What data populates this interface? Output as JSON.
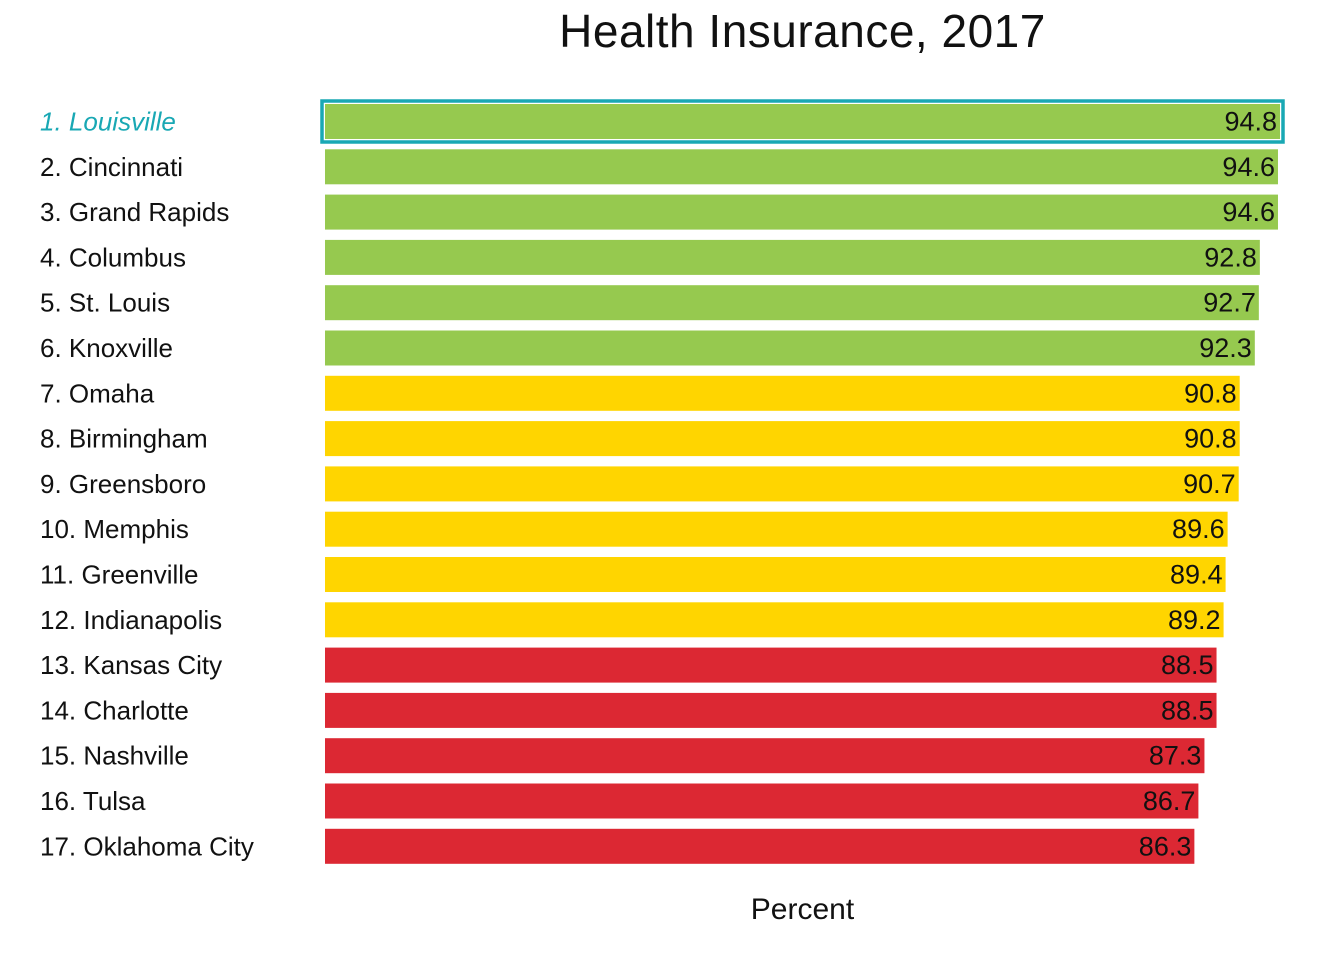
{
  "chart_data": {
    "type": "bar",
    "orientation": "horizontal",
    "title": "Health Insurance, 2017",
    "xlabel": "Percent",
    "ylabel": "",
    "xlim": [
      0,
      94.8
    ],
    "grid": false,
    "legend": "none",
    "highlight_index": 0,
    "highlight_color": "#19a8b4",
    "categories": [
      "1. Louisville",
      "2. Cincinnati",
      "3. Grand Rapids",
      "4. Columbus",
      "5. St. Louis",
      "6. Knoxville",
      "7. Omaha",
      "8. Birmingham",
      "9. Greensboro",
      "10. Memphis",
      "11. Greenville",
      "12. Indianapolis",
      "13. Kansas City",
      "14. Charlotte",
      "15. Nashville",
      "16. Tulsa",
      "17. Oklahoma City"
    ],
    "values": [
      94.8,
      94.6,
      94.6,
      92.8,
      92.7,
      92.3,
      90.8,
      90.8,
      90.7,
      89.6,
      89.4,
      89.2,
      88.5,
      88.5,
      87.3,
      86.7,
      86.3
    ],
    "value_labels": [
      "94.8",
      "94.6",
      "94.6",
      "92.8",
      "92.7",
      "92.3",
      "90.8",
      "90.8",
      "90.7",
      "89.6",
      "89.4",
      "89.2",
      "88.5",
      "88.5",
      "87.3",
      "86.7",
      "86.3"
    ],
    "bar_colors": [
      "#96c94f",
      "#96c94f",
      "#96c94f",
      "#96c94f",
      "#96c94f",
      "#96c94f",
      "#ffd500",
      "#ffd500",
      "#ffd500",
      "#ffd500",
      "#ffd500",
      "#ffd500",
      "#dc2833",
      "#dc2833",
      "#dc2833",
      "#dc2833",
      "#dc2833"
    ]
  }
}
